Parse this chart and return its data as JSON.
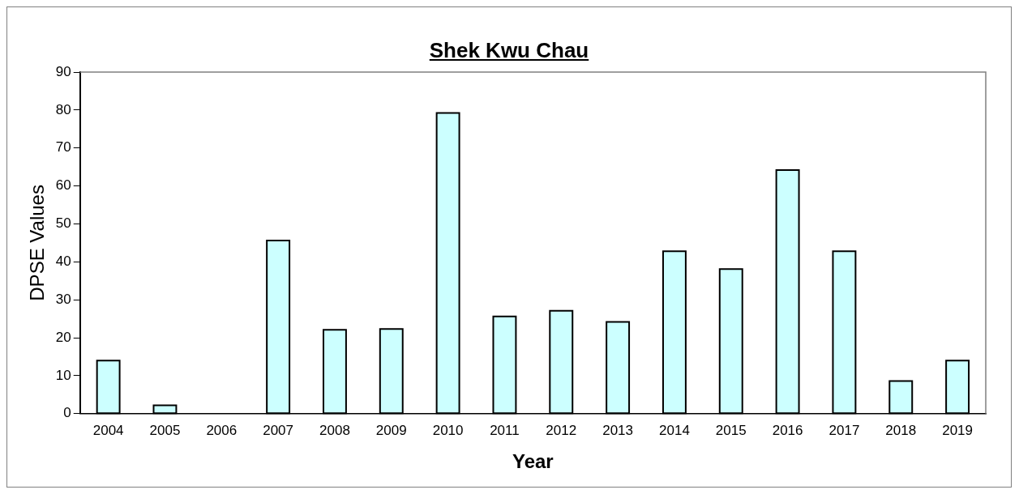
{
  "chart_data": {
    "type": "bar",
    "title": "Shek Kwu Chau",
    "xlabel": "Year",
    "ylabel": "DPSE Values",
    "categories": [
      "2004",
      "2005",
      "2006",
      "2007",
      "2008",
      "2009",
      "2010",
      "2011",
      "2012",
      "2013",
      "2014",
      "2015",
      "2016",
      "2017",
      "2018",
      "2019"
    ],
    "values": [
      14.0,
      2.2,
      0,
      45.6,
      22.1,
      22.3,
      79.2,
      25.6,
      27.1,
      24.2,
      42.8,
      38.1,
      64.2,
      42.8,
      8.6,
      14.0
    ],
    "color": "#ccffff",
    "ylim": [
      0,
      90
    ],
    "yticks": [
      0,
      10,
      20,
      30,
      40,
      50,
      60,
      70,
      80,
      90
    ],
    "grid": false,
    "legend": false
  }
}
